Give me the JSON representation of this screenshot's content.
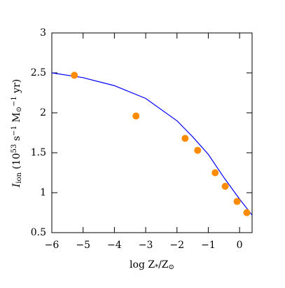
{
  "chart_data": {
    "type": "scatter+line",
    "xlabel_parts": [
      [
        "log Z",
        ""
      ],
      [
        "*",
        "sub"
      ],
      [
        "/Z",
        ""
      ],
      [
        "⊙",
        "sub"
      ]
    ],
    "ylabel_parts": [
      [
        "I",
        "italic"
      ],
      [
        "ion",
        "sub"
      ],
      [
        " (10",
        ""
      ],
      [
        "53",
        "sup"
      ],
      [
        " s",
        ""
      ],
      [
        "−1",
        "sup"
      ],
      [
        " M",
        ""
      ],
      [
        "⊙",
        "sub"
      ],
      [
        "−1",
        "sup"
      ],
      [
        " yr)",
        ""
      ]
    ],
    "xlim": [
      -6,
      0.4
    ],
    "ylim": [
      0.5,
      3
    ],
    "xticks": [
      {
        "value": -6,
        "label": "−6"
      },
      {
        "value": -5,
        "label": "−5"
      },
      {
        "value": -4,
        "label": "−4"
      },
      {
        "value": -3,
        "label": "−3"
      },
      {
        "value": -2,
        "label": "−2"
      },
      {
        "value": -1,
        "label": "−1"
      },
      0
    ],
    "yticks": [
      0.5,
      1,
      1.5,
      2,
      2.5,
      3
    ],
    "series": [
      {
        "kind": "line",
        "color": "#0000ff",
        "x": [
          -6,
          -5,
          -4,
          -3,
          -2,
          -1.5,
          -1,
          -0.5,
          0,
          0.4
        ],
        "values": [
          2.5,
          2.44,
          2.34,
          2.18,
          1.9,
          1.7,
          1.48,
          1.19,
          0.92,
          0.72
        ]
      },
      {
        "kind": "scatter",
        "color": "#ff8c00",
        "x": [
          -5.28,
          -3.31,
          -1.74,
          -1.34,
          -0.78,
          -0.46,
          -0.08,
          0.23
        ],
        "values": [
          2.47,
          1.96,
          1.68,
          1.53,
          1.25,
          1.08,
          0.89,
          0.75
        ]
      }
    ]
  }
}
